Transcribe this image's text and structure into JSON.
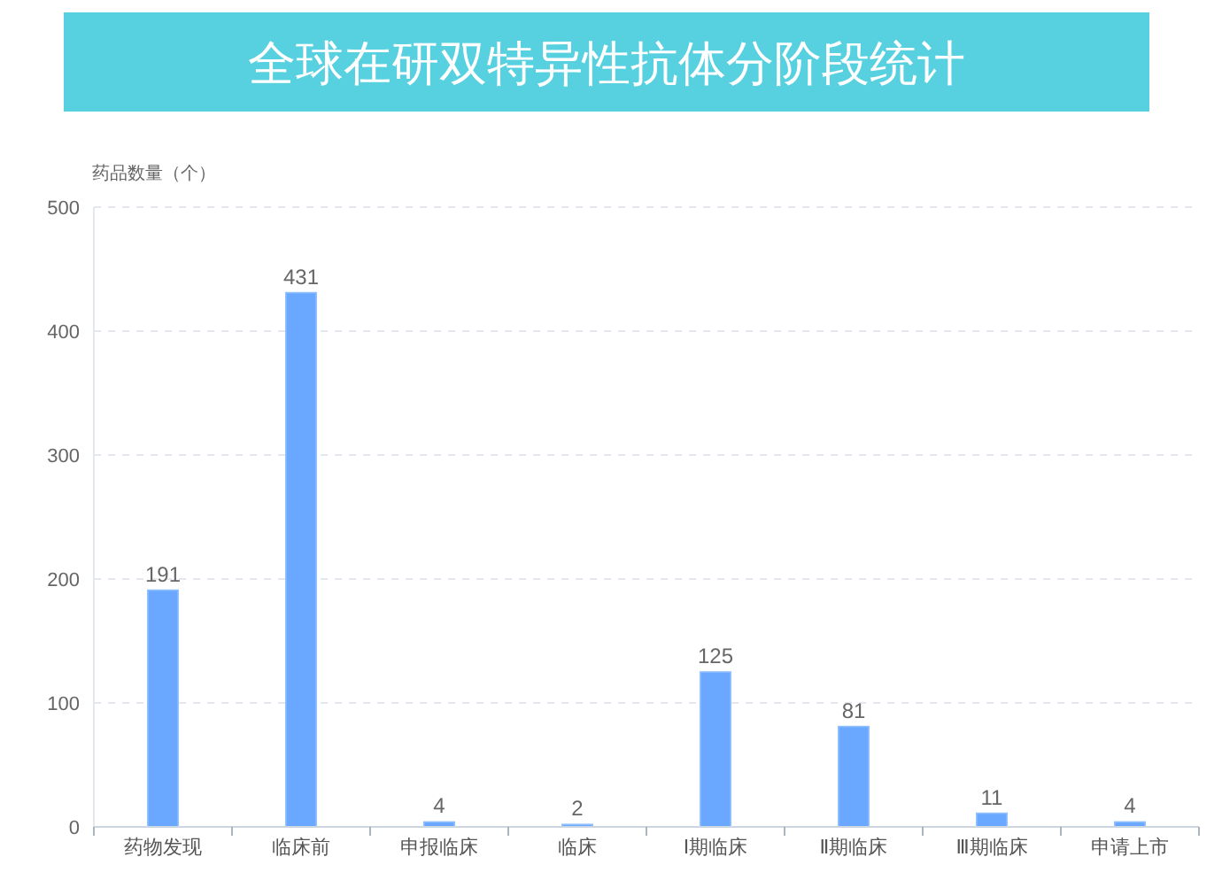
{
  "chart_data": {
    "type": "bar",
    "title": "全球在研双特异性抗体分阶段统计",
    "ylabel": "药品数量（个）",
    "categories": [
      "药物发现",
      "临床前",
      "申报临床",
      "临床",
      "Ⅰ期临床",
      "Ⅱ期临床",
      "Ⅲ期临床",
      "申请上市"
    ],
    "values": [
      191,
      431,
      4,
      2,
      125,
      81,
      11,
      4
    ],
    "color": "#6aa8ff",
    "ylim": [
      0,
      500
    ],
    "yticks": [
      0,
      100,
      200,
      300,
      400,
      500
    ],
    "grid": "y",
    "data_labels": true
  }
}
